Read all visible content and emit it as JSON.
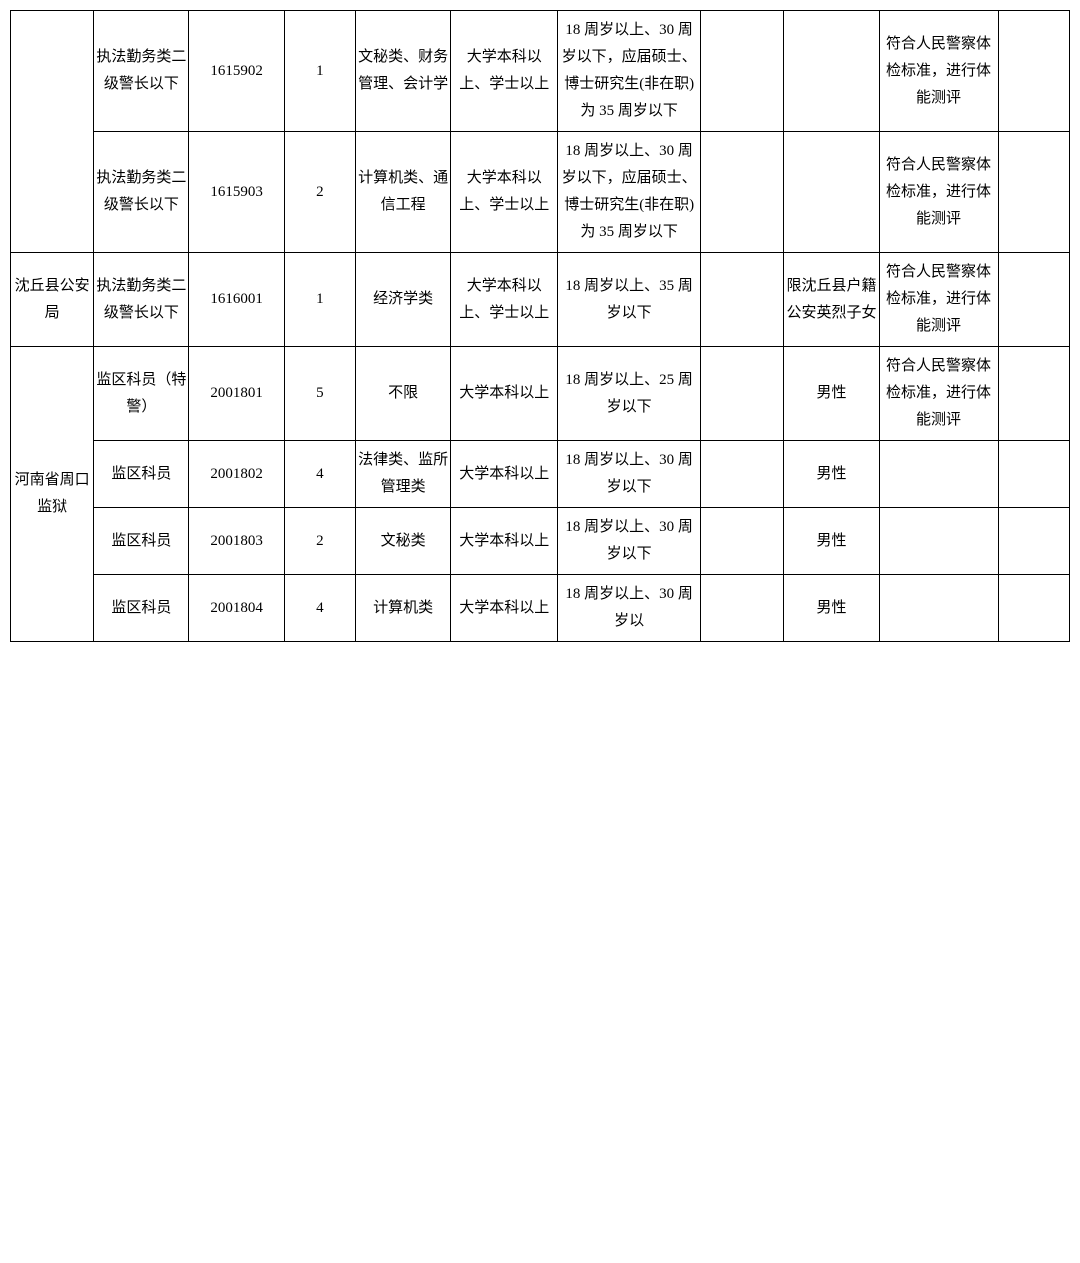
{
  "rows": [
    {
      "c0": "",
      "c1": "执法勤务类二级警长以下",
      "c2": "1615902",
      "c3": "1",
      "c4": "文秘类、财务管理、会计学",
      "c5": "大学本科以上、学士以上",
      "c6": "18 周岁以上、30 周岁以下，应届硕士、博士研究生(非在职)为 35 周岁以下",
      "c7": "",
      "c8": "",
      "c9": "符合人民警察体检标准，进行体能测评",
      "c10": "",
      "rs0": 2
    },
    {
      "c0": "",
      "c1": "执法勤务类二级警长以下",
      "c2": "1615903",
      "c3": "2",
      "c4": "计算机类、通信工程",
      "c5": "大学本科以上、学士以上",
      "c6": "18 周岁以上、30 周岁以下，应届硕士、博士研究生(非在职)为 35 周岁以下",
      "c7": "",
      "c8": "",
      "c9": "符合人民警察体检标准，进行体能测评",
      "c10": ""
    },
    {
      "c0": "沈丘县公安局",
      "c1": "执法勤务类二级警长以下",
      "c2": "1616001",
      "c3": "1",
      "c4": "经济学类",
      "c5": "大学本科以上、学士以上",
      "c6": "18 周岁以上、35 周岁以下",
      "c7": "",
      "c8": "限沈丘县户籍公安英烈子女",
      "c9": "符合人民警察体检标准，进行体能测评",
      "c10": ""
    },
    {
      "c0": "河南省周口监狱",
      "c1": "监区科员（特警）",
      "c2": "2001801",
      "c3": "5",
      "c4": "不限",
      "c5": "大学本科以上",
      "c6": "18 周岁以上、25 周岁以下",
      "c7": "",
      "c8": "男性",
      "c9": "符合人民警察体检标准，进行体能测评",
      "c10": "",
      "rs0": 4
    },
    {
      "c0": "",
      "c1": "监区科员",
      "c2": "2001802",
      "c3": "4",
      "c4": "法律类、监所管理类",
      "c5": "大学本科以上",
      "c6": "18 周岁以上、30 周岁以下",
      "c7": "",
      "c8": "男性",
      "c9": "",
      "c10": ""
    },
    {
      "c0": "",
      "c1": "监区科员",
      "c2": "2001803",
      "c3": "2",
      "c4": "文秘类",
      "c5": "大学本科以上",
      "c6": "18 周岁以上、30 周岁以下",
      "c7": "",
      "c8": "男性",
      "c9": "",
      "c10": ""
    },
    {
      "c0": "",
      "c1": "监区科员",
      "c2": "2001804",
      "c3": "4",
      "c4": "计算机类",
      "c5": "大学本科以上",
      "c6": "18 周岁以上、30 周岁以",
      "c7": "",
      "c8": "男性",
      "c9": "",
      "c10": ""
    }
  ],
  "colors": {
    "border": "#000000",
    "bg": "#ffffff",
    "text": "#000000"
  }
}
